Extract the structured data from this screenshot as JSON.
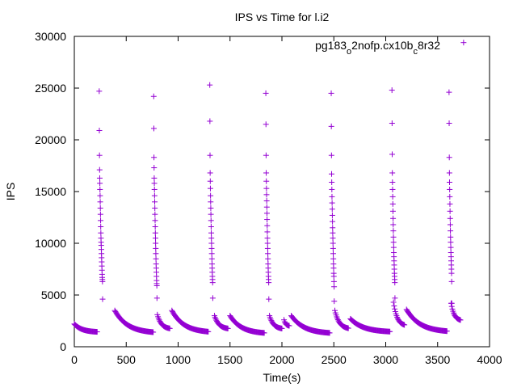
{
  "chart_data": {
    "type": "scatter",
    "title": "IPS vs Time for l.i2",
    "xlabel": "Time(s)",
    "ylabel": "IPS",
    "xlim": [
      0,
      4000
    ],
    "ylim": [
      0,
      30000
    ],
    "xticks": [
      0,
      500,
      1000,
      1500,
      2000,
      2500,
      3000,
      3500,
      4000
    ],
    "yticks": [
      0,
      5000,
      10000,
      15000,
      20000,
      25000,
      30000
    ],
    "grid": false,
    "legend_position": "top-right",
    "marker": "+",
    "series": [
      {
        "name": "pg183_o2nofp.cx10b_c8r32",
        "name_parts": {
          "base": "pg183",
          "sub1": "o",
          "mid": "2nofp.cx10b",
          "sub2": "c",
          "end": "8r32"
        },
        "color": "#9400d3",
        "decay_segments": [
          {
            "x_start": 0,
            "x_end": 220,
            "y_start": 2200,
            "y_end": 1400
          },
          {
            "x_start": 390,
            "x_end": 760,
            "y_start": 3500,
            "y_end": 1300
          },
          {
            "x_start": 800,
            "x_end": 920,
            "y_start": 3100,
            "y_end": 1700
          },
          {
            "x_start": 940,
            "x_end": 1290,
            "y_start": 3500,
            "y_end": 1350
          },
          {
            "x_start": 1350,
            "x_end": 1480,
            "y_start": 3000,
            "y_end": 1700
          },
          {
            "x_start": 1500,
            "x_end": 1830,
            "y_start": 3000,
            "y_end": 1250
          },
          {
            "x_start": 1880,
            "x_end": 2000,
            "y_start": 3000,
            "y_end": 1700
          },
          {
            "x_start": 2020,
            "x_end": 2070,
            "y_start": 2600,
            "y_end": 2000
          },
          {
            "x_start": 2090,
            "x_end": 2460,
            "y_start": 3000,
            "y_end": 1250
          },
          {
            "x_start": 2510,
            "x_end": 2640,
            "y_start": 3500,
            "y_end": 1700
          },
          {
            "x_start": 2660,
            "x_end": 3040,
            "y_start": 2700,
            "y_end": 1400
          },
          {
            "x_start": 3075,
            "x_end": 3180,
            "y_start": 4300,
            "y_end": 2000
          },
          {
            "x_start": 3200,
            "x_end": 3590,
            "y_start": 3600,
            "y_end": 1400
          },
          {
            "x_start": 3630,
            "x_end": 3720,
            "y_start": 4200,
            "y_end": 2500
          }
        ],
        "spikes": [
          {
            "x": 240,
            "values": [
              24700,
              20900,
              18500,
              17100,
              16300,
              15800,
              15200,
              14600,
              14000,
              13400,
              12800,
              12200,
              11600,
              11000,
              10500,
              10100,
              9800,
              9400,
              9000,
              8600,
              8200,
              7800,
              7400,
              7000,
              6700,
              6500,
              6300,
              4600
            ]
          },
          {
            "x": 765,
            "values": [
              24200,
              21100,
              18300,
              17300,
              16300,
              15800,
              15200,
              14600,
              14000,
              13400,
              12800,
              12200,
              11600,
              11000,
              10500,
              10000,
              9500,
              9000,
              8500,
              8000,
              7600,
              7200,
              6800,
              6400,
              6100,
              5900,
              4700
            ]
          },
          {
            "x": 1305,
            "values": [
              25300,
              21800,
              18500,
              16800,
              16000,
              15300,
              14600,
              14000,
              13400,
              12800,
              12200,
              11600,
              11000,
              10500,
              10000,
              9500,
              9000,
              8500,
              8000,
              7600,
              7200,
              6800,
              6500,
              6200,
              4700
            ]
          },
          {
            "x": 1845,
            "values": [
              24500,
              21500,
              18500,
              16800,
              16000,
              15300,
              14700,
              14100,
              13500,
              12900,
              12300,
              11700,
              11100,
              10500,
              10000,
              9500,
              9000,
              8500,
              8000,
              7600,
              7200,
              6800,
              6500,
              6200,
              4600
            ]
          },
          {
            "x": 2475,
            "values": [
              24500,
              21300,
              18500,
              16700,
              15900,
              15200,
              14500,
              13900,
              13300,
              12700,
              12100,
              11500,
              11000,
              10500,
              10000,
              9500,
              9000,
              8500,
              8000,
              7600,
              7100,
              6800,
              6300,
              5800,
              4400
            ]
          },
          {
            "x": 3060,
            "values": [
              24800,
              21600,
              18600,
              16800,
              15900,
              15200,
              14500,
              13800,
              13100,
              12400,
              11800,
              11200,
              10600,
              10100,
              9600,
              9100,
              8700,
              8300,
              7900,
              7500,
              7100,
              6800,
              6500,
              6200,
              4700
            ]
          },
          {
            "x": 3610,
            "values": [
              24600,
              21600,
              18300,
              16800,
              15900,
              15200,
              14500,
              13800,
              13100,
              12400,
              11800,
              11200,
              10600,
              10100,
              9600,
              9100,
              8700,
              8300,
              7900,
              7500,
              7100,
              6300,
              4200
            ]
          }
        ],
        "legend_marker_point": {
          "x": 3750,
          "y": 29400
        }
      }
    ]
  }
}
